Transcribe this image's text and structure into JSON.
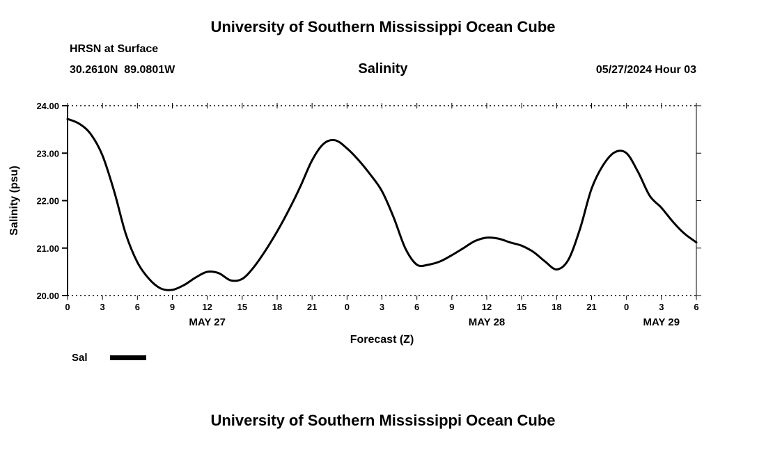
{
  "header": {
    "title": "University of Southern Mississippi Ocean Cube",
    "station": "HRSN at Surface",
    "coords": "30.2610N  89.0801W",
    "plot_title": "Salinity",
    "datetime": "05/27/2024 Hour 03"
  },
  "footer": {
    "title": "University of Southern Mississippi Ocean Cube"
  },
  "chart_data": {
    "type": "line",
    "title": "Salinity",
    "xlabel": "Forecast (Z)",
    "ylabel": "Salinity (psu)",
    "ylim": [
      20,
      24
    ],
    "xlim": [
      0,
      54
    ],
    "line_color": "#000000",
    "legend_label": "Sal",
    "legend_position": "bottom-left",
    "grid": false,
    "yticks": [
      {
        "v": 20,
        "label": "20.00"
      },
      {
        "v": 21,
        "label": "21.00"
      },
      {
        "v": 22,
        "label": "22.00"
      },
      {
        "v": 23,
        "label": "23.00"
      },
      {
        "v": 24,
        "label": "24.00"
      }
    ],
    "xticks": [
      {
        "t": 0,
        "label": "0"
      },
      {
        "t": 3,
        "label": "3"
      },
      {
        "t": 6,
        "label": "6"
      },
      {
        "t": 9,
        "label": "9"
      },
      {
        "t": 12,
        "label": "12"
      },
      {
        "t": 15,
        "label": "15"
      },
      {
        "t": 18,
        "label": "18"
      },
      {
        "t": 21,
        "label": "21"
      },
      {
        "t": 24,
        "label": "0"
      },
      {
        "t": 27,
        "label": "3"
      },
      {
        "t": 30,
        "label": "6"
      },
      {
        "t": 33,
        "label": "9"
      },
      {
        "t": 36,
        "label": "12"
      },
      {
        "t": 39,
        "label": "15"
      },
      {
        "t": 42,
        "label": "18"
      },
      {
        "t": 45,
        "label": "21"
      },
      {
        "t": 48,
        "label": "0"
      },
      {
        "t": 51,
        "label": "3"
      },
      {
        "t": 54,
        "label": "6"
      }
    ],
    "day_labels": [
      {
        "label": "MAY 27",
        "center_hour": 12
      },
      {
        "label": "MAY 28",
        "center_hour": 36
      },
      {
        "label": "MAY 29",
        "center_hour": 51
      }
    ],
    "x_start": 0,
    "x_step_hours": 1,
    "series": [
      {
        "name": "Sal",
        "color": "#000000",
        "values": [
          23.72,
          23.62,
          23.4,
          22.95,
          22.2,
          21.3,
          20.7,
          20.35,
          20.15,
          20.12,
          20.22,
          20.38,
          20.5,
          20.47,
          20.32,
          20.35,
          20.6,
          20.95,
          21.35,
          21.8,
          22.3,
          22.85,
          23.2,
          23.27,
          23.1,
          22.85,
          22.55,
          22.2,
          21.65,
          21.0,
          20.65,
          20.65,
          20.72,
          20.85,
          21.0,
          21.15,
          21.22,
          21.2,
          21.12,
          21.05,
          20.92,
          20.72,
          20.55,
          20.75,
          21.4,
          22.25,
          22.75,
          23.02,
          23.0,
          22.6,
          22.1,
          21.85,
          21.55,
          21.3,
          21.12
        ]
      }
    ]
  }
}
